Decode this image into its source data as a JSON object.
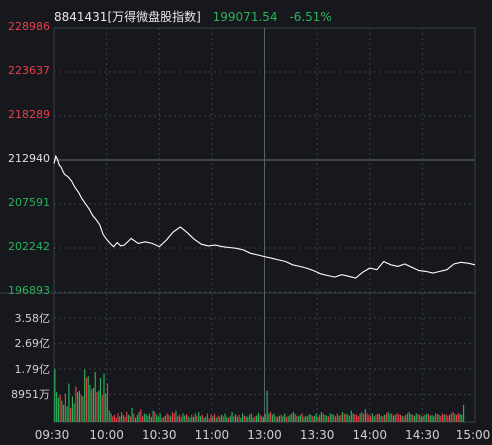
{
  "header": {
    "code_name": "8841431[万得微盘股指数]",
    "last_price": "199071.54",
    "change_pct": "-6.51%"
  },
  "colors": {
    "up": "#e8404a",
    "down": "#29b35a",
    "line": "#ffffff",
    "grid": "#3a3f47",
    "background": "#16181d"
  },
  "chart_data": {
    "type": "line",
    "price_axis": {
      "tick_labels": [
        "228986",
        "223637",
        "218289",
        "212940",
        "207591",
        "202242",
        "196893"
      ],
      "ylim": [
        196893,
        228986
      ],
      "reference_value": 212940
    },
    "volume_axis": {
      "tick_labels": [
        "3.58亿",
        "2.69亿",
        "1.79亿",
        "8951万"
      ]
    },
    "time_labels": [
      "09:30",
      "10:00",
      "10:30",
      "11:00",
      "13:00",
      "13:30",
      "14:00",
      "14:30",
      "15:00"
    ],
    "price_series": {
      "x": [
        0,
        1,
        2,
        3,
        4,
        5,
        6,
        8,
        10,
        12,
        14,
        16,
        18,
        20,
        22,
        24,
        26,
        28,
        30,
        32,
        34,
        36,
        38,
        40,
        44,
        48,
        52,
        56,
        60,
        64,
        68,
        72,
        76,
        80,
        84,
        88,
        92,
        96,
        100,
        104,
        108,
        112,
        116,
        120,
        124,
        128,
        132,
        136,
        140,
        144,
        148,
        152,
        156,
        160,
        164,
        168,
        172,
        176,
        180,
        184,
        188,
        192,
        196,
        200,
        204,
        208,
        212,
        216,
        220,
        224,
        228,
        232,
        236,
        240
      ],
      "values": [
        212500,
        213400,
        213000,
        212300,
        212100,
        211600,
        211200,
        210900,
        210400,
        209600,
        209000,
        208200,
        207600,
        207000,
        206200,
        205700,
        205100,
        203900,
        203300,
        202800,
        202400,
        202900,
        202500,
        202600,
        203400,
        202800,
        203000,
        202800,
        202400,
        203200,
        204200,
        204800,
        204100,
        203300,
        202700,
        202500,
        202600,
        202400,
        202300,
        202200,
        202000,
        201600,
        201400,
        201200,
        201000,
        200800,
        200600,
        200200,
        200000,
        199800,
        199500,
        199100,
        198900,
        198700,
        199000,
        198800,
        198600,
        199300,
        199800,
        199600,
        200600,
        200200,
        200000,
        200300,
        199900,
        199500,
        199400,
        199200,
        199400,
        199600,
        200300,
        200500,
        200400,
        200200
      ]
    },
    "volume_series": {
      "unit": "亿",
      "values": [
        1.85,
        1.05,
        0.85,
        0.95,
        0.75,
        0.6,
        1.0,
        0.55,
        1.35,
        0.5,
        0.9,
        0.65,
        1.25,
        1.05,
        1.1,
        0.95,
        0.9,
        1.85,
        1.55,
        1.6,
        1.3,
        1.15,
        1.2,
        1.75,
        1.05,
        1.1,
        1.55,
        0.95,
        1.7,
        1.0,
        1.35,
        0.4,
        0.3,
        0.2,
        0.25,
        0.15,
        0.3,
        0.2,
        0.35,
        0.25,
        0.18,
        0.35,
        0.25,
        0.2,
        0.5,
        0.3,
        0.15,
        0.25,
        0.35,
        0.45,
        0.2,
        0.3,
        0.28,
        0.22,
        0.3,
        0.18,
        0.4,
        0.35,
        0.25,
        0.2,
        0.3,
        0.15,
        0.18,
        0.22,
        0.3,
        0.25,
        0.2,
        0.35,
        0.3,
        0.4,
        0.2,
        0.25,
        0.18,
        0.3,
        0.22,
        0.28,
        0.2,
        0.15,
        0.25,
        0.18,
        0.3,
        0.22,
        0.35,
        0.2,
        0.25,
        0.15,
        0.18,
        0.3,
        0.12,
        0.25,
        0.2,
        0.28,
        0.15,
        0.22,
        0.18,
        0.25,
        0.2,
        0.3,
        0.18,
        0.15,
        0.22,
        0.35,
        0.2,
        0.28,
        0.18,
        0.25,
        0.15,
        0.3,
        0.22,
        0.2,
        0.18,
        0.25,
        0.3,
        0.15,
        0.2,
        0.22,
        0.32,
        0.25,
        0.2,
        0.18,
        0.28,
        1.1,
        0.3,
        0.35,
        0.25,
        0.3,
        0.2,
        0.18,
        0.22,
        0.25,
        0.2,
        0.3,
        0.18,
        0.2,
        0.25,
        0.3,
        0.35,
        0.28,
        0.22,
        0.2,
        0.25,
        0.3,
        0.18,
        0.22,
        0.2,
        0.28,
        0.25,
        0.2,
        0.22,
        0.3,
        0.18,
        0.25,
        0.35,
        0.3,
        0.25,
        0.22,
        0.2,
        0.3,
        0.28,
        0.25,
        0.2,
        0.3,
        0.22,
        0.25,
        0.35,
        0.28,
        0.3,
        0.25,
        0.22,
        0.4,
        0.3,
        0.28,
        0.25,
        0.2,
        0.3,
        0.35,
        0.28,
        0.45,
        0.3,
        0.25,
        0.22,
        0.3,
        0.2,
        0.25,
        0.3,
        0.28,
        0.22,
        0.2,
        0.25,
        0.3,
        0.35,
        0.28,
        0.3,
        0.22,
        0.25,
        0.3,
        0.28,
        0.25,
        0.22,
        0.2,
        0.25,
        0.3,
        0.35,
        0.28,
        0.25,
        0.22,
        0.3,
        0.28,
        0.25,
        0.2,
        0.22,
        0.25,
        0.3,
        0.28,
        0.22,
        0.25,
        0.2,
        0.3,
        0.28,
        0.25,
        0.22,
        0.3,
        0.25,
        0.28,
        0.22,
        0.25,
        0.3,
        0.35,
        0.28,
        0.25,
        0.3,
        0.28,
        0.25,
        0.6
      ],
      "direction": "mixed"
    }
  }
}
